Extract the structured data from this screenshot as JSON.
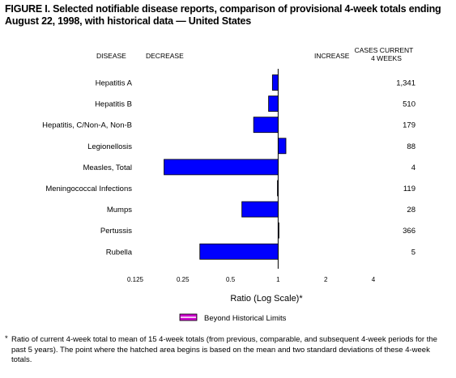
{
  "figure": {
    "title": "FIGURE I. Selected notifiable disease reports, comparison of provisional 4-week totals ending August 22, 1998, with historical data — United States",
    "headers": {
      "disease": "DISEASE",
      "decrease": "DECREASE",
      "increase": "INCREASE",
      "cases_line1": "CASES CURRENT",
      "cases_line2": "4 WEEKS"
    },
    "legend_label": "Beyond Historical Limits",
    "footnote_mark": "*",
    "footnote": "Ratio of current 4-week total to mean of 15 4-week totals (from previous, comparable, and subsequent 4-week periods for the past 5 years). The point where the hatched area begins is based on the mean and two standard deviations of these 4-week totals."
  },
  "chart_data": {
    "type": "bar",
    "orientation": "horizontal",
    "categories": [
      "Hepatitis A",
      "Hepatitis B",
      "Hepatitis, C/Non-A, Non-B",
      "Legionellosis",
      "Measles, Total",
      "Meningococcal Infections",
      "Mumps",
      "Pertussis",
      "Rubella"
    ],
    "values": [
      0.92,
      0.87,
      0.7,
      1.12,
      0.19,
      0.99,
      0.59,
      1.0,
      0.32
    ],
    "cases": [
      "1,341",
      "510",
      "179",
      "88",
      "4",
      "119",
      "28",
      "366",
      "5"
    ],
    "xlabel": "Ratio (Log Scale)*",
    "xscale": "log2",
    "xlim": [
      0.125,
      4
    ],
    "xticks": [
      "0.125",
      "0.25",
      "0.5",
      "1",
      "2",
      "4"
    ],
    "colors": {
      "bar": "#0000ff",
      "legend": "#cc00cc"
    },
    "grid": false
  }
}
